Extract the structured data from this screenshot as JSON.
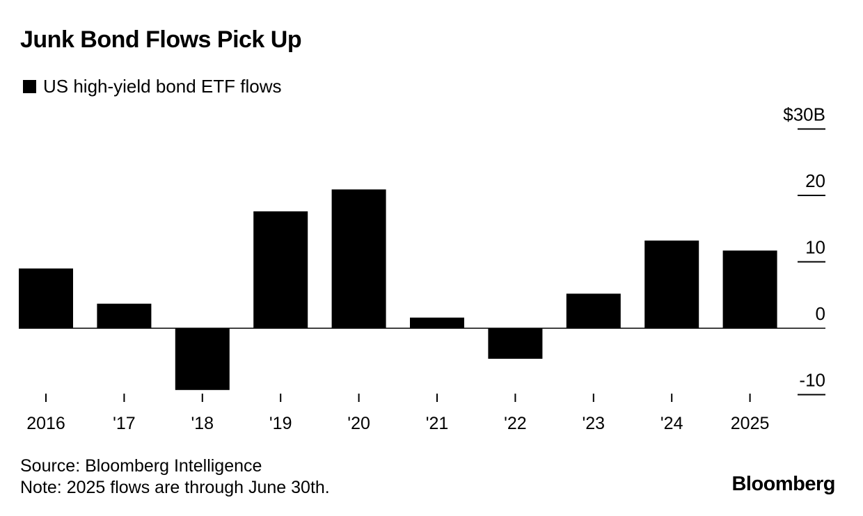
{
  "colors": {
    "bar": "#000000",
    "axis": "#000000",
    "background": "#ffffff"
  },
  "legend": {
    "label": "US high-yield bond ETF flows"
  },
  "footer": {
    "source": "Source: Bloomberg Intelligence",
    "note": "Note: 2025 flows are through June 30th.",
    "brand": "Bloomberg"
  },
  "chart_data": {
    "type": "bar",
    "title": "Junk Bond Flows Pick Up",
    "categories": [
      "2016",
      "'17",
      "'18",
      "'19",
      "'20",
      "'21",
      "'22",
      "'23",
      "'24",
      "2025"
    ],
    "series": [
      {
        "name": "US high-yield bond ETF flows",
        "values": [
          9.0,
          3.7,
          -9.3,
          17.6,
          20.9,
          1.6,
          -4.6,
          5.2,
          13.2,
          11.7
        ]
      }
    ],
    "y_ticks": [
      {
        "value": 30,
        "label": "$30B"
      },
      {
        "value": 20,
        "label": "20"
      },
      {
        "value": 10,
        "label": "10"
      },
      {
        "value": 0,
        "label": "0"
      },
      {
        "value": -10,
        "label": "-10"
      }
    ],
    "ylim": [
      -10,
      30
    ],
    "xlabel": "",
    "ylabel": "",
    "grid": false,
    "legend_position": "top-left",
    "y_axis_side": "right"
  }
}
